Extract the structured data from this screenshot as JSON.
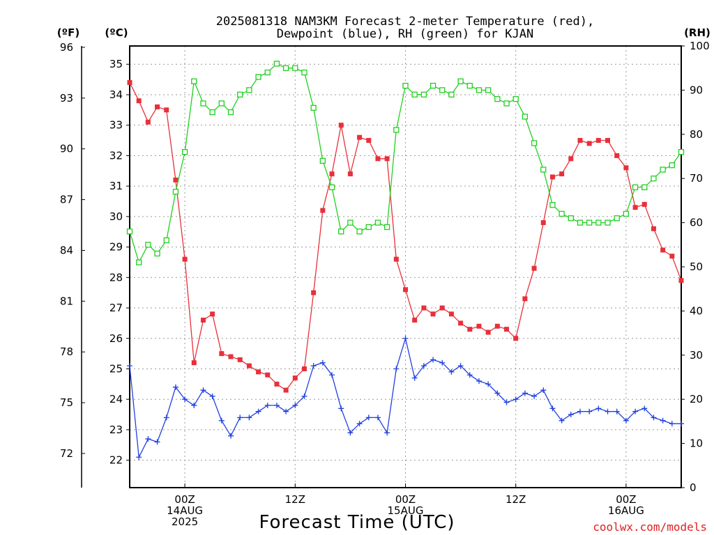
{
  "chart_data": {
    "type": "line",
    "title_line1": "2025081318 NAM3KM Forecast 2-meter Temperature (red),",
    "title_line2": "Dewpoint (blue), RH (green) for KJAN",
    "xlabel": "Forecast Time (UTC)",
    "credit": "coolwx.com/models",
    "units": {
      "fahrenheit": "(ºF)",
      "celsius": "(ºC)",
      "rh": "(RH)"
    },
    "x_hours_start": 0,
    "x_hours_end": 60,
    "x_ticks": [
      {
        "hour": 6,
        "lines": [
          "00Z",
          "14AUG",
          "2025"
        ]
      },
      {
        "hour": 18,
        "lines": [
          "12Z"
        ]
      },
      {
        "hour": 30,
        "lines": [
          "00Z",
          "15AUG"
        ]
      },
      {
        "hour": 42,
        "lines": [
          "12Z"
        ]
      },
      {
        "hour": 54,
        "lines": [
          "00Z",
          "16AUG"
        ]
      }
    ],
    "celsius_axis": {
      "min": 21.1,
      "max": 35.6,
      "ticks": [
        22,
        23,
        24,
        25,
        26,
        27,
        28,
        29,
        30,
        31,
        32,
        33,
        34,
        35
      ]
    },
    "fahrenheit_axis": {
      "ticks": [
        72,
        75,
        78,
        81,
        84,
        87,
        90,
        93,
        96
      ]
    },
    "rh_axis": {
      "min": 0,
      "max": 100,
      "ticks": [
        0,
        10,
        20,
        30,
        40,
        50,
        60,
        70,
        80,
        90,
        100
      ]
    },
    "series": [
      {
        "name": "Temperature",
        "color": "#e8303a",
        "marker": "filled-square",
        "axis": "celsius",
        "values": [
          34.4,
          33.8,
          33.1,
          33.6,
          33.5,
          31.2,
          28.6,
          25.2,
          26.6,
          26.8,
          25.5,
          25.4,
          25.3,
          25.1,
          24.9,
          24.8,
          24.5,
          24.3,
          24.7,
          25.0,
          27.5,
          30.2,
          31.4,
          33.0,
          31.4,
          32.6,
          32.5,
          31.9,
          31.9,
          28.6,
          27.6,
          26.6,
          27.0,
          26.8,
          27.0,
          26.8,
          26.5,
          26.3,
          26.4,
          26.2,
          26.4,
          26.3,
          26.0,
          27.3,
          28.3,
          29.8,
          31.3,
          31.4,
          31.9,
          32.5,
          32.4,
          32.5,
          32.5,
          32.0,
          31.6,
          30.3,
          30.4,
          29.6,
          28.9,
          28.7,
          27.9
        ]
      },
      {
        "name": "Dewpoint",
        "color": "#2040e0",
        "marker": "plus",
        "axis": "celsius",
        "values": [
          25.1,
          22.1,
          22.7,
          22.6,
          23.4,
          24.4,
          24.0,
          23.8,
          24.3,
          24.1,
          23.3,
          22.8,
          23.4,
          23.4,
          23.6,
          23.8,
          23.8,
          23.6,
          23.8,
          24.1,
          25.1,
          25.2,
          24.8,
          23.7,
          22.9,
          23.2,
          23.4,
          23.4,
          22.9,
          25.0,
          26.0,
          24.7,
          25.1,
          25.3,
          25.2,
          24.9,
          25.1,
          24.8,
          24.6,
          24.5,
          24.2,
          23.9,
          24.0,
          24.2,
          24.1,
          24.3,
          23.7,
          23.3,
          23.5,
          23.6,
          23.6,
          23.7,
          23.6,
          23.6,
          23.3,
          23.6,
          23.7,
          23.4,
          23.3,
          23.2,
          23.2
        ]
      },
      {
        "name": "RH",
        "color": "#20d020",
        "marker": "open-square",
        "axis": "rh",
        "values": [
          58,
          51,
          55,
          53,
          56,
          67,
          76,
          92,
          87,
          85,
          87,
          85,
          89,
          90,
          93,
          94,
          96,
          95,
          95,
          94,
          86,
          74,
          68,
          58,
          60,
          58,
          59,
          60,
          59,
          81,
          91,
          89,
          89,
          91,
          90,
          89,
          92,
          91,
          90,
          90,
          88,
          87,
          88,
          84,
          78,
          72,
          64,
          62,
          61,
          60,
          60,
          60,
          60,
          61,
          62,
          68,
          68,
          70,
          72,
          73,
          76
        ]
      }
    ]
  }
}
